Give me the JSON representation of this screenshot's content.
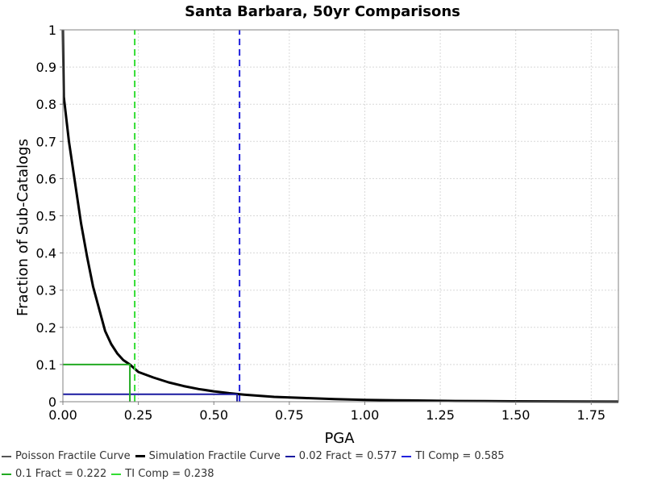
{
  "chart_data": {
    "type": "line",
    "title": "Santa Barbara, 50yr Comparisons",
    "xlabel": "PGA",
    "ylabel": "Fraction of Sub-Catalogs",
    "xlim": [
      0,
      1.84
    ],
    "ylim": [
      0,
      1
    ],
    "x_ticks": [
      "0.00",
      "0.25",
      "0.50",
      "0.75",
      "1.00",
      "1.25",
      "1.50",
      "1.75"
    ],
    "y_ticks": [
      "0",
      "0.1",
      "0.2",
      "0.3",
      "0.4",
      "0.5",
      "0.6",
      "0.7",
      "0.8",
      "0.9",
      "1"
    ],
    "grid": true,
    "legend_position": "bottom",
    "series": [
      {
        "name": "Poisson Fractile Curve",
        "color": "#555555",
        "style": "dashed",
        "x": [],
        "y": []
      },
      {
        "name": "Simulation Fractile Curve",
        "color": "#000000",
        "style": "solid",
        "x": [
          0.0,
          0.003,
          0.006,
          0.02,
          0.04,
          0.06,
          0.08,
          0.1,
          0.12,
          0.14,
          0.16,
          0.18,
          0.2,
          0.222,
          0.25,
          0.3,
          0.35,
          0.4,
          0.45,
          0.5,
          0.55,
          0.6,
          0.65,
          0.7,
          0.8,
          0.9,
          1.0,
          1.1,
          1.2,
          1.3,
          1.4,
          1.5,
          1.6,
          1.7,
          1.84
        ],
        "y": [
          1.0,
          0.82,
          0.8,
          0.7,
          0.59,
          0.48,
          0.39,
          0.31,
          0.25,
          0.19,
          0.155,
          0.13,
          0.112,
          0.1,
          0.08,
          0.065,
          0.052,
          0.042,
          0.034,
          0.028,
          0.023,
          0.019,
          0.016,
          0.013,
          0.01,
          0.007,
          0.005,
          0.004,
          0.003,
          0.002,
          0.0015,
          0.001,
          0.0008,
          0.0005,
          0.0003
        ]
      },
      {
        "name": "0.02 Fract = 0.577",
        "color": "#1a1aa0",
        "style": "solid",
        "x": [
          0,
          0.577,
          0.577
        ],
        "y": [
          0.02,
          0.02,
          0
        ]
      },
      {
        "name": "TI Comp = 0.585",
        "color": "#2222dd",
        "style": "dashed",
        "x": [
          0.585,
          0.585
        ],
        "y": [
          0,
          1
        ]
      },
      {
        "name": "0.1 Fract = 0.222",
        "color": "#22aa22",
        "style": "solid",
        "x": [
          0,
          0.222,
          0.222
        ],
        "y": [
          0.1,
          0.1,
          0
        ]
      },
      {
        "name": "TI Comp = 0.238",
        "color": "#33dd33",
        "style": "dashed",
        "x": [
          0.238,
          0.238
        ],
        "y": [
          0,
          1
        ]
      }
    ]
  }
}
